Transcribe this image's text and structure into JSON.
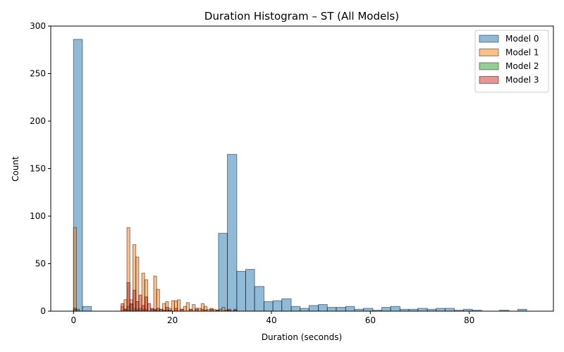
{
  "chart_data": {
    "type": "histogram",
    "title": "Duration Histogram – ST (All Models)",
    "xlabel": "Duration (seconds)",
    "ylabel": "Count",
    "xlim": [
      -4.6,
      97.0
    ],
    "ylim": [
      0,
      300
    ],
    "xticks": [
      0,
      20,
      40,
      60,
      80
    ],
    "yticks": [
      0,
      50,
      100,
      150,
      200,
      250,
      300
    ],
    "grid": false,
    "legend_position": "top-right",
    "series": [
      {
        "name": "Model 0",
        "color": "#1f77b4",
        "fill_opacity": 0.5,
        "bins": [
          [
            0.0,
            1.8,
            286
          ],
          [
            1.8,
            3.6,
            5
          ],
          [
            3.6,
            5.5,
            0
          ],
          [
            5.5,
            7.3,
            0
          ],
          [
            7.3,
            9.1,
            0
          ],
          [
            9.1,
            11.0,
            0
          ],
          [
            11.0,
            12.8,
            0
          ],
          [
            12.8,
            14.6,
            0
          ],
          [
            14.6,
            16.5,
            0
          ],
          [
            16.5,
            18.3,
            0
          ],
          [
            18.3,
            20.1,
            0
          ],
          [
            20.1,
            22.0,
            0
          ],
          [
            22.0,
            23.8,
            0
          ],
          [
            23.8,
            25.6,
            0
          ],
          [
            25.6,
            27.5,
            0
          ],
          [
            27.5,
            29.3,
            0
          ],
          [
            29.3,
            31.1,
            82
          ],
          [
            31.1,
            33.0,
            165
          ],
          [
            33.0,
            34.8,
            42
          ],
          [
            34.8,
            36.6,
            44
          ],
          [
            36.6,
            38.5,
            26
          ],
          [
            38.5,
            40.3,
            10
          ],
          [
            40.3,
            42.1,
            11
          ],
          [
            42.1,
            44.0,
            13
          ],
          [
            44.0,
            45.8,
            5
          ],
          [
            45.8,
            47.6,
            3
          ],
          [
            47.6,
            49.5,
            6
          ],
          [
            49.5,
            51.3,
            7
          ],
          [
            51.3,
            53.1,
            4
          ],
          [
            53.1,
            55.0,
            4
          ],
          [
            55.0,
            56.8,
            5
          ],
          [
            56.8,
            58.6,
            2
          ],
          [
            58.6,
            60.5,
            3
          ],
          [
            60.5,
            62.3,
            1
          ],
          [
            62.3,
            64.1,
            4
          ],
          [
            64.1,
            66.0,
            5
          ],
          [
            66.0,
            67.8,
            2
          ],
          [
            67.8,
            69.6,
            2
          ],
          [
            69.6,
            71.5,
            3
          ],
          [
            71.5,
            73.3,
            2
          ],
          [
            73.3,
            75.1,
            3
          ],
          [
            75.1,
            77.0,
            3
          ],
          [
            77.0,
            78.8,
            1
          ],
          [
            78.8,
            80.6,
            2
          ],
          [
            80.6,
            82.5,
            1
          ],
          [
            82.5,
            84.3,
            0
          ],
          [
            84.3,
            86.1,
            0
          ],
          [
            86.1,
            88.0,
            1
          ],
          [
            88.0,
            89.8,
            0
          ],
          [
            89.8,
            91.6,
            2
          ]
        ]
      },
      {
        "name": "Model 1",
        "color": "#ff7f0e",
        "fill_opacity": 0.5,
        "bins": [
          [
            0.0,
            0.6,
            88
          ],
          [
            0.6,
            1.2,
            0
          ],
          [
            1.2,
            1.8,
            0
          ],
          [
            9.6,
            10.2,
            5
          ],
          [
            10.2,
            10.8,
            12
          ],
          [
            10.8,
            11.4,
            88
          ],
          [
            11.4,
            12.0,
            12
          ],
          [
            12.0,
            12.6,
            70
          ],
          [
            12.6,
            13.2,
            57
          ],
          [
            13.2,
            13.8,
            0
          ],
          [
            13.8,
            14.4,
            40
          ],
          [
            14.4,
            15.0,
            33
          ],
          [
            15.0,
            15.6,
            0
          ],
          [
            15.6,
            16.2,
            0
          ],
          [
            16.2,
            16.8,
            37
          ],
          [
            16.8,
            17.4,
            23
          ],
          [
            17.4,
            18.0,
            2
          ],
          [
            18.0,
            18.6,
            8
          ],
          [
            18.6,
            19.2,
            10
          ],
          [
            19.2,
            19.8,
            3
          ],
          [
            19.8,
            20.4,
            11
          ],
          [
            20.4,
            21.0,
            11
          ],
          [
            21.0,
            21.6,
            12
          ],
          [
            21.6,
            22.2,
            2
          ],
          [
            22.2,
            22.8,
            5
          ],
          [
            22.8,
            23.4,
            9
          ],
          [
            23.4,
            24.0,
            2
          ],
          [
            24.0,
            24.6,
            7
          ],
          [
            24.6,
            25.2,
            3
          ],
          [
            25.2,
            25.8,
            3
          ],
          [
            25.8,
            26.4,
            8
          ],
          [
            26.4,
            27.0,
            5
          ],
          [
            27.0,
            27.6,
            2
          ],
          [
            27.6,
            28.2,
            3
          ],
          [
            28.2,
            28.8,
            2
          ],
          [
            28.8,
            29.4,
            1
          ],
          [
            29.4,
            30.0,
            2
          ],
          [
            30.0,
            30.6,
            4
          ],
          [
            30.6,
            31.2,
            1
          ],
          [
            31.2,
            31.8,
            2
          ]
        ]
      },
      {
        "name": "Model 2",
        "color": "#2ca02c",
        "fill_opacity": 0.5,
        "bins": [
          [
            0.0,
            0.6,
            3
          ],
          [
            0.6,
            1.2,
            2
          ],
          [
            10.2,
            10.8,
            2
          ],
          [
            10.8,
            11.4,
            5
          ],
          [
            11.4,
            12.0,
            7
          ],
          [
            12.0,
            12.6,
            3
          ],
          [
            12.6,
            13.2,
            2
          ],
          [
            13.2,
            13.8,
            3
          ],
          [
            13.8,
            14.4,
            2
          ],
          [
            14.4,
            15.0,
            2
          ],
          [
            15.6,
            16.2,
            2
          ],
          [
            16.2,
            16.8,
            1
          ],
          [
            18.6,
            19.2,
            1
          ],
          [
            26.4,
            27.0,
            1
          ],
          [
            32.4,
            33.0,
            1
          ]
        ]
      },
      {
        "name": "Model 3",
        "color": "#d62728",
        "fill_opacity": 0.5,
        "bins": [
          [
            0.0,
            0.6,
            2
          ],
          [
            9.6,
            10.2,
            8
          ],
          [
            10.2,
            10.8,
            2
          ],
          [
            10.8,
            11.4,
            30
          ],
          [
            11.4,
            12.0,
            8
          ],
          [
            12.0,
            12.6,
            22
          ],
          [
            12.6,
            13.2,
            10
          ],
          [
            13.2,
            13.8,
            17
          ],
          [
            13.8,
            14.4,
            6
          ],
          [
            14.4,
            15.0,
            15
          ],
          [
            15.0,
            15.6,
            8
          ],
          [
            15.6,
            16.2,
            3
          ],
          [
            16.2,
            16.8,
            2
          ],
          [
            16.8,
            17.4,
            3
          ],
          [
            17.4,
            18.0,
            2
          ],
          [
            18.0,
            18.6,
            1
          ],
          [
            18.6,
            19.2,
            4
          ],
          [
            19.2,
            19.8,
            1
          ],
          [
            20.4,
            21.0,
            3
          ],
          [
            21.6,
            22.2,
            2
          ],
          [
            23.4,
            24.0,
            2
          ],
          [
            24.6,
            25.2,
            2
          ],
          [
            25.8,
            26.4,
            2
          ],
          [
            27.6,
            28.2,
            2
          ],
          [
            28.8,
            29.4,
            1
          ],
          [
            31.2,
            31.8,
            1
          ],
          [
            32.4,
            33.0,
            2
          ]
        ]
      }
    ]
  }
}
